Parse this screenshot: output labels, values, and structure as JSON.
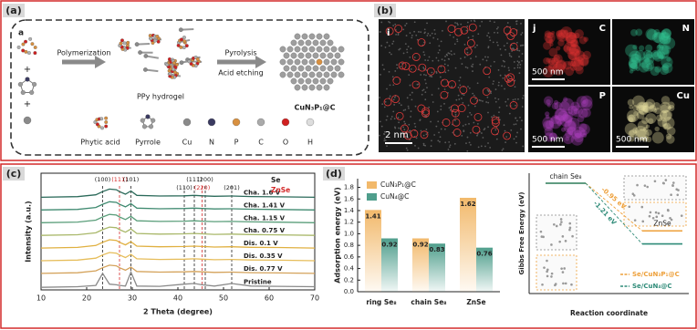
{
  "panel_a": {
    "label": "(a)",
    "step_label": "a",
    "arrow1": "Polymerization",
    "arrow2_top": "Pyrolysis",
    "arrow2_bottom": "Acid etching",
    "intermediate": "PPy hydrogel",
    "product": "CuN₃P₁@C",
    "legend": [
      "Phytic acid",
      "Pyrrole",
      "Cu",
      "N",
      "P",
      "C",
      "O",
      "H"
    ]
  },
  "panel_b": {
    "label": "(b)",
    "image": {
      "label": "i",
      "scale_bar": "2 nm"
    },
    "maps": [
      {
        "label": "j",
        "element": "C",
        "scale_bar": "500 nm"
      },
      {
        "element": "N"
      },
      {
        "element": "P",
        "scale_bar": "500 nm"
      },
      {
        "element": "Cu",
        "scale_bar": "500 nm"
      }
    ]
  },
  "chart_data": [
    {
      "type": "line",
      "panel": "(c)",
      "xlabel": "2 Theta (degree)",
      "ylabel": "Intensity (a.u.)",
      "x": [
        10,
        18,
        22,
        23.5,
        25,
        26.5,
        27.2,
        28.5,
        29.7,
        31,
        36,
        41.4,
        43.6,
        45.3,
        48,
        51.8,
        56,
        62,
        70
      ],
      "xlim": [
        10,
        70
      ],
      "xticks": [
        10,
        20,
        30,
        40,
        50,
        60,
        70
      ],
      "ylim": [
        0,
        9.2
      ],
      "legend": [
        {
          "name": "Se",
          "color": "#222222"
        },
        {
          "name": "ZnSe",
          "color": "#d42a2a"
        }
      ],
      "reference_lines": [
        {
          "x": 23.5,
          "label": "(100)",
          "color": "#222222"
        },
        {
          "x": 27.2,
          "label": "(111)",
          "color": "#d42a2a"
        },
        {
          "x": 29.7,
          "label": "(101)",
          "color": "#222222"
        },
        {
          "x": 41.4,
          "label": "(110)",
          "color": "#222222"
        },
        {
          "x": 43.6,
          "label": "(111)",
          "color": "#222222"
        },
        {
          "x": 45.3,
          "label": "(220)",
          "color": "#d42a2a"
        },
        {
          "x": 46,
          "label": "(200)",
          "color": "#222222"
        },
        {
          "x": 51.8,
          "label": "(201)",
          "color": "#222222"
        }
      ],
      "series": [
        {
          "name": "Cha. 1.6 V",
          "color": "#2b6a5a",
          "values": [
            7.3,
            7.35,
            7.5,
            7.75,
            7.95,
            7.9,
            7.75,
            7.55,
            7.8,
            7.45,
            7.4,
            7.42,
            7.45,
            7.42,
            7.38,
            7.4,
            7.36,
            7.34,
            7.3
          ]
        },
        {
          "name": "Cha. 1.41 V",
          "color": "#3f8a70",
          "values": [
            6.3,
            6.35,
            6.5,
            6.75,
            6.95,
            6.9,
            6.75,
            6.55,
            6.8,
            6.45,
            6.4,
            6.42,
            6.45,
            6.42,
            6.38,
            6.4,
            6.36,
            6.34,
            6.3
          ]
        },
        {
          "name": "Cha. 1.15 V",
          "color": "#5a9e7a",
          "values": [
            5.3,
            5.35,
            5.5,
            5.75,
            5.95,
            5.9,
            5.75,
            5.55,
            5.8,
            5.45,
            5.4,
            5.42,
            5.45,
            5.42,
            5.38,
            5.4,
            5.36,
            5.34,
            5.3
          ]
        },
        {
          "name": "Cha. 0.75 V",
          "color": "#a9b86a",
          "values": [
            4.3,
            4.35,
            4.5,
            4.75,
            4.95,
            4.9,
            4.75,
            4.55,
            4.8,
            4.45,
            4.4,
            4.42,
            4.45,
            4.42,
            4.38,
            4.4,
            4.36,
            4.34,
            4.3
          ]
        },
        {
          "name": "Dis. 0.1 V",
          "color": "#e0b040",
          "values": [
            3.3,
            3.35,
            3.5,
            3.75,
            3.95,
            3.9,
            3.75,
            3.55,
            3.8,
            3.45,
            3.4,
            3.42,
            3.45,
            3.42,
            3.38,
            3.4,
            3.36,
            3.34,
            3.3
          ]
        },
        {
          "name": "Dis. 0.35 V",
          "color": "#e6bd5a",
          "values": [
            2.3,
            2.35,
            2.5,
            2.75,
            2.95,
            2.9,
            2.75,
            2.55,
            2.8,
            2.45,
            2.4,
            2.42,
            2.45,
            2.42,
            2.38,
            2.4,
            2.36,
            2.34,
            2.3
          ]
        },
        {
          "name": "Dis. 0.77 V",
          "color": "#d4a25a",
          "values": [
            1.3,
            1.35,
            1.5,
            1.75,
            1.95,
            1.9,
            1.75,
            1.55,
            1.8,
            1.45,
            1.4,
            1.42,
            1.45,
            1.42,
            1.38,
            1.4,
            1.36,
            1.34,
            1.3
          ]
        },
        {
          "name": "Pristine",
          "color": "#8a8a8a",
          "values": [
            0.2,
            0.25,
            0.35,
            1.3,
            0.45,
            0.4,
            0.35,
            0.3,
            1.4,
            0.3,
            0.28,
            0.45,
            0.5,
            0.4,
            0.3,
            0.5,
            0.3,
            0.28,
            0.25
          ]
        }
      ]
    },
    {
      "type": "bar",
      "panel": "(d)",
      "ylabel": "Adsorption energy (eV)",
      "categories": [
        "ring Se₈",
        "chain Se₈",
        "ZnSe"
      ],
      "series": [
        {
          "name": "CuN₃P₁@C",
          "color": "#f2b96b",
          "values": [
            1.41,
            0.92,
            1.62
          ]
        },
        {
          "name": "CuN₄@C",
          "color": "#4f9e8c",
          "values": [
            0.92,
            0.83,
            0.76
          ]
        }
      ],
      "ylim": [
        0,
        1.95
      ],
      "yticks": [
        {
          "value": 0,
          "label": "0.0"
        },
        0.2,
        0.4,
        0.6,
        0.8,
        {
          "value": 1,
          "label": "1.0"
        },
        1.2,
        1.4,
        1.6,
        1.8
      ]
    },
    {
      "type": "energy_levels",
      "ylabel": "Gibbs Free Energy (eV)",
      "xlabel": "Reaction coordinate",
      "categories": [
        "chain Se₈",
        "ZnSe"
      ],
      "ylim": [
        -2.2,
        0.2
      ],
      "series": [
        {
          "name": "Se/CuN₃P₁@C",
          "color": "#eea03a",
          "values": [
            0,
            -0.95
          ],
          "value_labels": [
            null,
            "-0.95 eV"
          ]
        },
        {
          "name": "Se/CuN₄@C",
          "color": "#2e8b78",
          "values": [
            0,
            -1.21
          ],
          "value_labels": [
            null,
            "-1.21 eV"
          ]
        }
      ]
    }
  ]
}
